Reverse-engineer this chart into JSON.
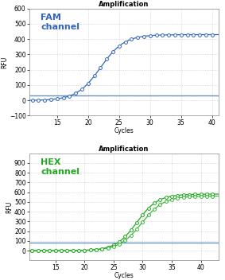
{
  "title": "Amplification",
  "fam_label": "FAM\nchannel",
  "hex_label": "HEX\nchannel",
  "fam_color": "#3366BB",
  "hex_color": "#22AA22",
  "threshold_color": "#5588BB",
  "xlabel": "Cycles",
  "ylabel": "RFU",
  "fam_ylim": [
    -100,
    600
  ],
  "fam_yticks": [
    -100,
    0,
    100,
    200,
    300,
    400,
    500,
    600
  ],
  "hex_ylim": [
    -100,
    1000
  ],
  "hex_yticks": [
    0,
    100,
    200,
    300,
    400,
    500,
    600,
    700,
    800,
    900
  ],
  "xlim_fam": [
    10.5,
    41
  ],
  "xlim_hex": [
    10.5,
    43
  ],
  "fam_xticks": [
    15,
    20,
    25,
    30,
    35,
    40
  ],
  "hex_xticks": [
    15,
    20,
    25,
    30,
    35,
    40
  ],
  "fam_threshold": 32,
  "hex_threshold": 80,
  "fam_midpoint": 22.0,
  "fam_L": 430,
  "fam_k": 0.52,
  "hex_midpoint": 29.0,
  "hex_L": 580,
  "hex_k": 0.55,
  "hex_midpoint2": 29.8,
  "hex_L2": 560,
  "hex_k2": 0.52,
  "bg_color": "#FFFFFF",
  "fig_bg": "#FFFFFF",
  "title_fontsize": 6,
  "tick_fontsize": 5.5,
  "channel_fontsize": 8,
  "grid_color": "#AAAAAA"
}
